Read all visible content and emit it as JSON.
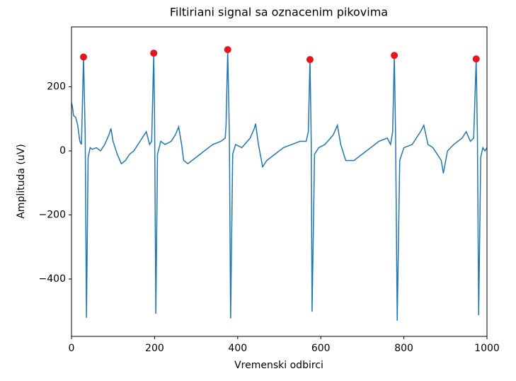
{
  "chart_data": {
    "type": "line",
    "title": "Filtiriani signal sa oznacenim pikovima",
    "x_label": "Vremenski odbirci",
    "y_label": "Amplituda (uV)",
    "xlim": [
      0,
      1000
    ],
    "ylim": [
      -579,
      387
    ],
    "xticks": [
      0,
      200,
      400,
      600,
      800,
      1000
    ],
    "yticks": [
      {
        "value": -400,
        "label": "−400"
      },
      {
        "value": -200,
        "label": "−200"
      },
      0,
      200
    ],
    "series": [
      {
        "mark": "line",
        "color": "#1f77b4",
        "x": [
          0,
          2,
          5,
          10,
          15,
          20,
          24,
          29,
          33,
          36,
          40,
          45,
          50,
          60,
          70,
          80,
          90,
          95,
          100,
          110,
          120,
          130,
          140,
          150,
          160,
          170,
          180,
          188,
          193,
          198,
          200,
          203,
          207,
          215,
          225,
          240,
          250,
          258,
          265,
          270,
          280,
          300,
          320,
          340,
          360,
          370,
          372,
          376,
          380,
          383,
          388,
          395,
          410,
          430,
          440,
          443,
          450,
          460,
          470,
          490,
          510,
          530,
          550,
          565,
          570,
          574,
          577,
          579,
          585,
          595,
          610,
          630,
          640,
          648,
          660,
          680,
          700,
          720,
          740,
          760,
          768,
          773,
          777,
          780,
          784,
          790,
          800,
          820,
          840,
          848,
          858,
          870,
          890,
          895,
          905,
          920,
          940,
          950,
          960,
          968,
          974,
          977,
          980,
          985,
          990,
          995,
          1000
        ],
        "values": [
          150,
          140,
          110,
          105,
          80,
          30,
          20,
          293,
          50,
          -521,
          -20,
          10,
          5,
          10,
          0,
          20,
          50,
          70,
          30,
          -10,
          -40,
          -30,
          -10,
          0,
          20,
          40,
          60,
          20,
          30,
          305,
          100,
          -508,
          -10,
          30,
          20,
          30,
          50,
          75,
          20,
          -30,
          -40,
          -20,
          0,
          20,
          30,
          40,
          80,
          316,
          50,
          -523,
          -10,
          20,
          10,
          40,
          70,
          85,
          20,
          -50,
          -30,
          -10,
          10,
          20,
          30,
          30,
          60,
          285,
          30,
          -502,
          -10,
          10,
          20,
          50,
          80,
          20,
          -30,
          -30,
          -10,
          10,
          30,
          40,
          20,
          60,
          298,
          50,
          -530,
          -30,
          10,
          20,
          60,
          80,
          20,
          10,
          -30,
          -70,
          0,
          20,
          40,
          60,
          30,
          40,
          287,
          50,
          -513,
          -20,
          10,
          0,
          10
        ]
      },
      {
        "mark": "scatter",
        "color": "#e8141c",
        "x": [
          29,
          198,
          376,
          574,
          777,
          974
        ],
        "values": [
          293,
          305,
          316,
          285,
          298,
          287
        ]
      }
    ]
  }
}
